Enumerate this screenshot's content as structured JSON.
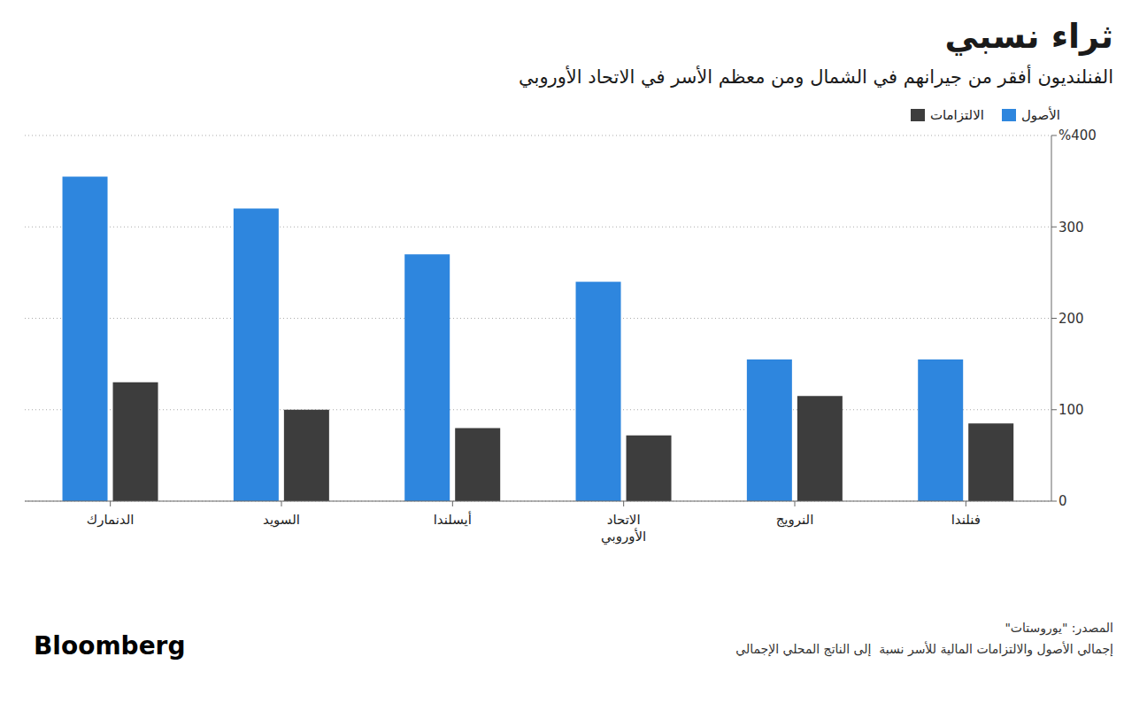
{
  "chart_data": {
    "type": "bar",
    "title": "ثراء نسبي",
    "subtitle": "الفنلنديون أفقر من جيرانهم في الشمال ومن معظم الأسر في الاتحاد الأوروبي",
    "categories": [
      "الدنمارك",
      "السويد",
      "أيسلندا",
      "الاتحاد\nالأوروبي",
      "النرويج",
      "فنلندا"
    ],
    "series": [
      {
        "name": "الأصول",
        "color": "#2E86DE",
        "values": [
          355,
          320,
          270,
          240,
          155,
          155
        ]
      },
      {
        "name": "الالتزامات",
        "color": "#3D3D3D",
        "values": [
          130,
          100,
          80,
          72,
          115,
          85
        ]
      }
    ],
    "ylim": [
      0,
      400
    ],
    "yticks": [
      0,
      100,
      200,
      300,
      {
        "value": 400,
        "label": "%400"
      }
    ],
    "grid": true,
    "legend": "upper right",
    "annotations": [
      "المصدر: \"يوروستات\"",
      "إجمالي الأصول والالتزامات المالية للأسر نسبة  إلى الناتج المحلي الإجمالي",
      "Bloomberg"
    ]
  }
}
